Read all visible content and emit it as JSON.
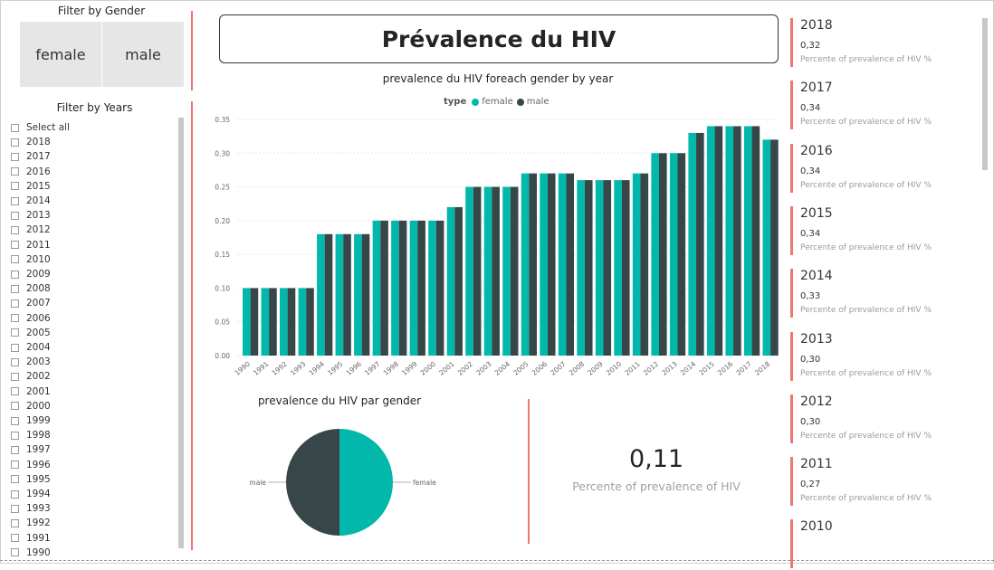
{
  "gender_filter": {
    "title": "Filter by Gender",
    "options": [
      "female",
      "male"
    ]
  },
  "years_filter": {
    "title": "Filter by Years",
    "items": [
      "Select all",
      "2018",
      "2017",
      "2016",
      "2015",
      "2014",
      "2013",
      "2012",
      "2011",
      "2010",
      "2009",
      "2008",
      "2007",
      "2006",
      "2005",
      "2004",
      "2003",
      "2002",
      "2001",
      "2000",
      "1999",
      "1998",
      "1997",
      "1996",
      "1995",
      "1994",
      "1993",
      "1992",
      "1991",
      "1990"
    ]
  },
  "page_title": "Prévalence du HIV",
  "colors": {
    "female": "#01b8aa",
    "male": "#374649",
    "accent": "#f07470"
  },
  "chart_data": [
    {
      "type": "bar",
      "title": "prevalence du HIV foreach gender by year",
      "legend_title": "type",
      "legend_placement": "top-center",
      "categories": [
        "1990",
        "1991",
        "1992",
        "1993",
        "1994",
        "1995",
        "1996",
        "1997",
        "1998",
        "1999",
        "2000",
        "2001",
        "2002",
        "2003",
        "2004",
        "2005",
        "2006",
        "2007",
        "2008",
        "2009",
        "2010",
        "2011",
        "2012",
        "2013",
        "2014",
        "2015",
        "2016",
        "2017",
        "2018"
      ],
      "series": [
        {
          "name": "female",
          "values": [
            0.1,
            0.1,
            0.1,
            0.1,
            0.18,
            0.18,
            0.18,
            0.2,
            0.2,
            0.2,
            0.2,
            0.22,
            0.25,
            0.25,
            0.25,
            0.27,
            0.27,
            0.27,
            0.26,
            0.26,
            0.26,
            0.27,
            0.3,
            0.3,
            0.33,
            0.34,
            0.34,
            0.34,
            0.32
          ]
        },
        {
          "name": "male",
          "values": [
            0.1,
            0.1,
            0.1,
            0.1,
            0.18,
            0.18,
            0.18,
            0.2,
            0.2,
            0.2,
            0.2,
            0.22,
            0.25,
            0.25,
            0.25,
            0.27,
            0.27,
            0.27,
            0.26,
            0.26,
            0.26,
            0.27,
            0.3,
            0.3,
            0.33,
            0.34,
            0.34,
            0.34,
            0.32
          ]
        }
      ],
      "yticks": [
        "0.00",
        "0.05",
        "0.10",
        "0.15",
        "0.20",
        "0.25",
        "0.30",
        "0.35"
      ],
      "ylim": [
        0,
        0.35
      ],
      "grid": true
    },
    {
      "type": "pie",
      "title": "prevalence du HIV par gender",
      "categories": [
        "female",
        "male"
      ],
      "values": [
        50,
        50
      ]
    }
  ],
  "kpi_card": {
    "value": "0,11",
    "label": "Percente of prevalence of HIV"
  },
  "year_cards": [
    {
      "year": "2018",
      "value": "0,32",
      "label": "Percente of prevalence of HIV %"
    },
    {
      "year": "2017",
      "value": "0,34",
      "label": "Percente of prevalence of HIV %"
    },
    {
      "year": "2016",
      "value": "0,34",
      "label": "Percente of prevalence of HIV %"
    },
    {
      "year": "2015",
      "value": "0,34",
      "label": "Percente of prevalence of HIV %"
    },
    {
      "year": "2014",
      "value": "0,33",
      "label": "Percente of prevalence of HIV %"
    },
    {
      "year": "2013",
      "value": "0,30",
      "label": "Percente of prevalence of HIV %"
    },
    {
      "year": "2012",
      "value": "0,30",
      "label": "Percente of prevalence of HIV %"
    },
    {
      "year": "2011",
      "value": "0,27",
      "label": "Percente of prevalence of HIV %"
    },
    {
      "year": "2010",
      "value": "",
      "label": ""
    }
  ]
}
